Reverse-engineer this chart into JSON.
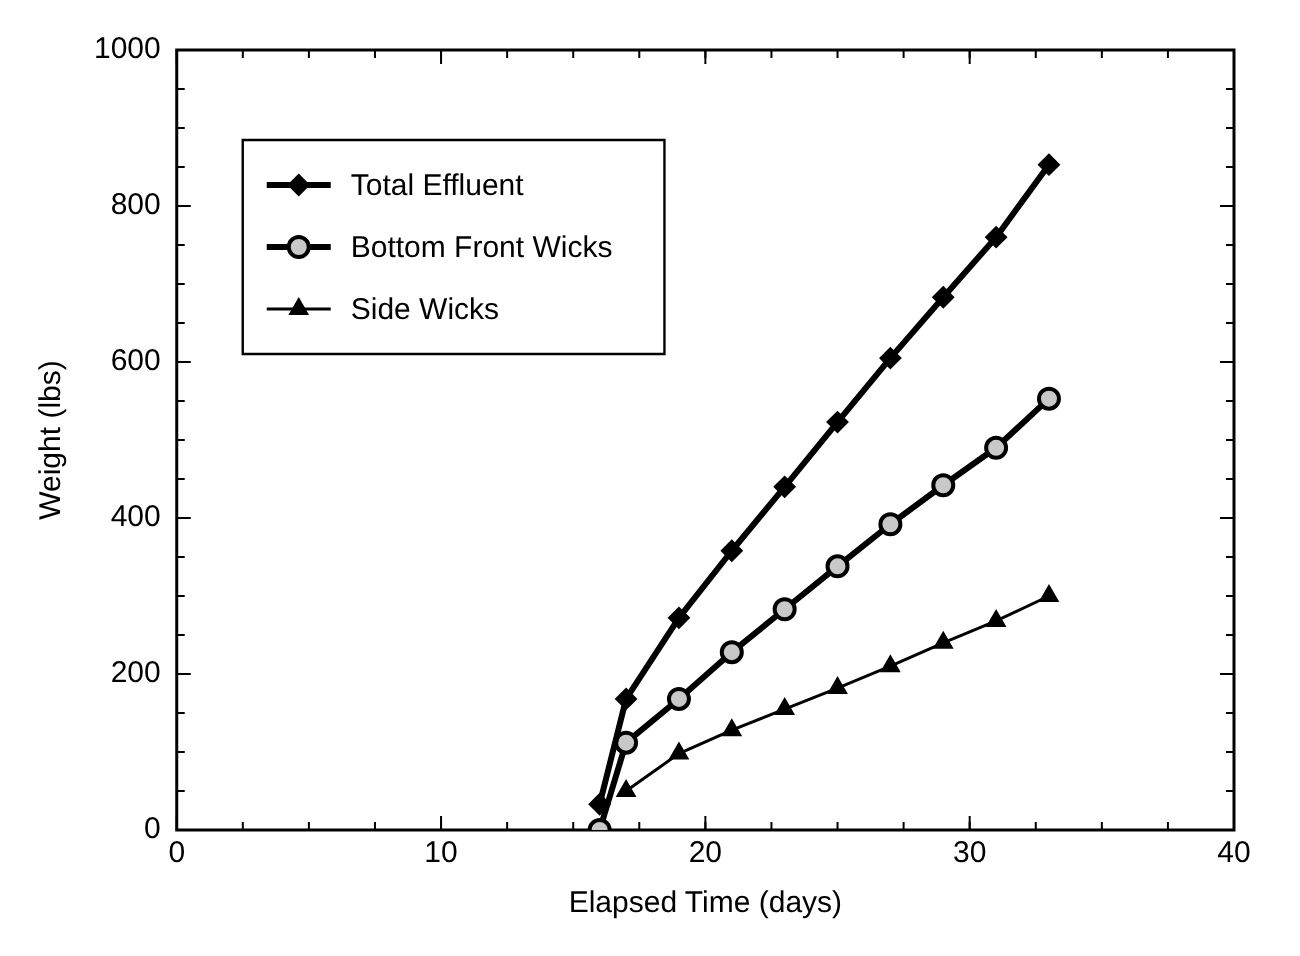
{
  "chart_data": {
    "type": "line",
    "xlabel": "Elapsed Time (days)",
    "ylabel": "Weight (lbs)",
    "x": [
      16,
      17,
      19,
      21,
      23,
      25,
      27,
      29,
      31,
      33
    ],
    "xlim": [
      0,
      40
    ],
    "xticks": [
      0,
      10,
      20,
      30,
      40
    ],
    "ylim": [
      0,
      1000
    ],
    "yticks": [
      0,
      200,
      400,
      600,
      800,
      1000
    ],
    "grid": false,
    "legend": "top left",
    "line_style": "solid",
    "series": [
      {
        "name": "Total Effluent",
        "color": "#000000",
        "marker": "diamond",
        "values": [
          33,
          168,
          272,
          358,
          440,
          523,
          605,
          683,
          760,
          853
        ]
      },
      {
        "name": "Bottom Front Wicks",
        "color": "#000000",
        "marker": "circle",
        "values": [
          0,
          112,
          168,
          228,
          283,
          338,
          392,
          442,
          490,
          553
        ]
      },
      {
        "name": "Side Wicks",
        "color": "#000000",
        "marker": "triangle",
        "values": [
          null,
          50,
          98,
          128,
          155,
          182,
          210,
          240,
          268,
          300
        ]
      }
    ]
  }
}
